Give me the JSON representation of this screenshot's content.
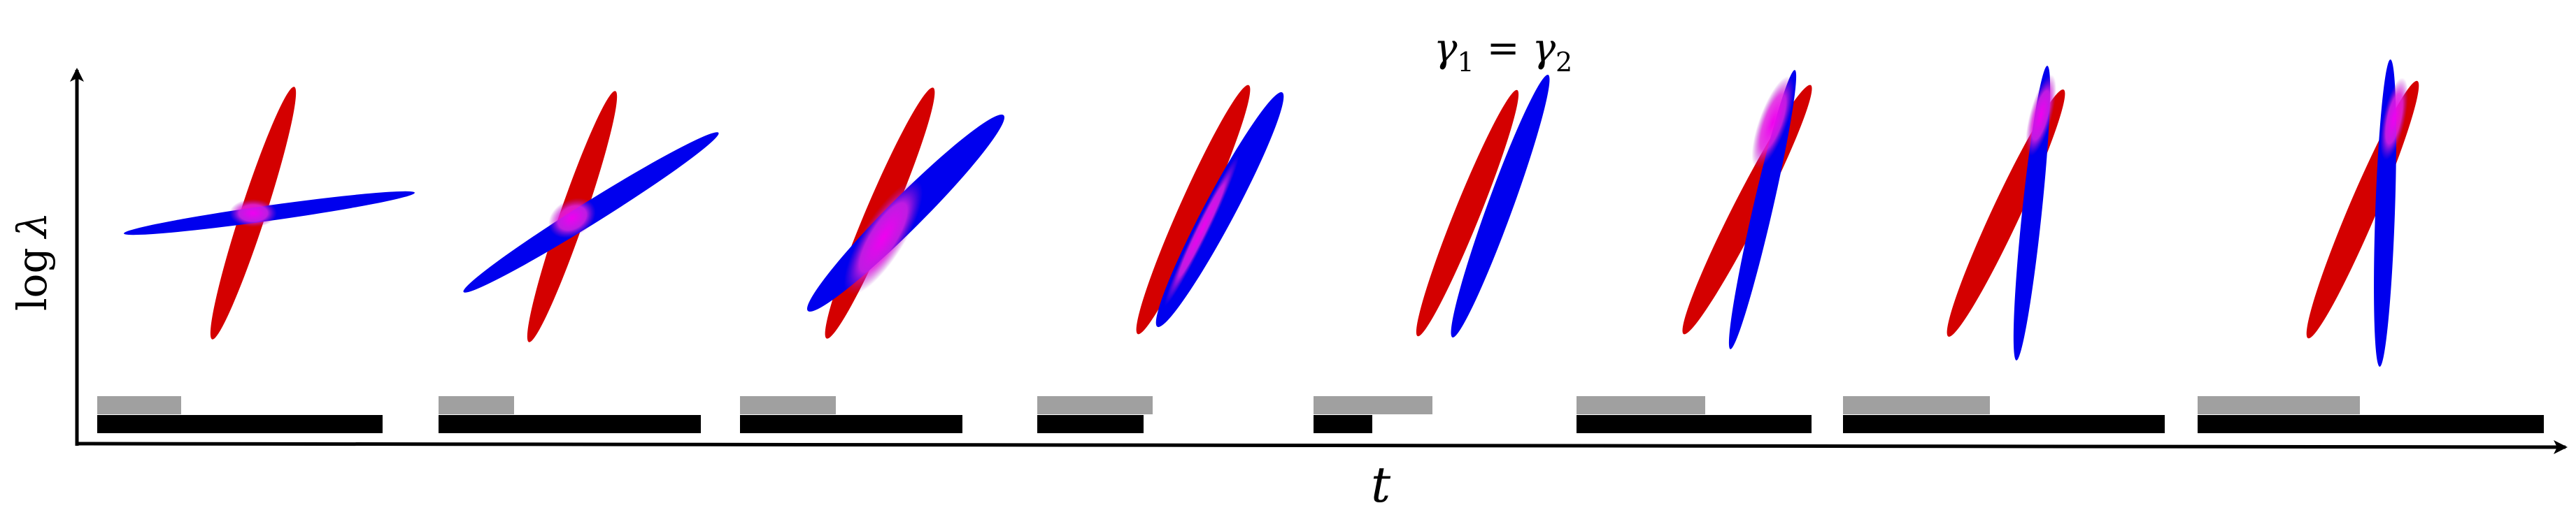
{
  "title": {
    "lhs_symbol": "γ",
    "lhs_sub": "1",
    "op": "=",
    "rhs_symbol": "γ",
    "rhs_sub": "2"
  },
  "axes": {
    "x_label": "t",
    "y_label_func": "log",
    "y_label_var": "λ"
  },
  "colors": {
    "red": "#d40000",
    "blue": "#0000ee",
    "overlap": "#e81ee8",
    "gray_bar": "#a0a0a0",
    "black_bar": "#000000",
    "axis": "#000000"
  },
  "icons": {
    "x_axis_arrow": "arrow-right-icon",
    "y_axis_arrow": "arrow-up-icon"
  },
  "stage_count": 8
}
